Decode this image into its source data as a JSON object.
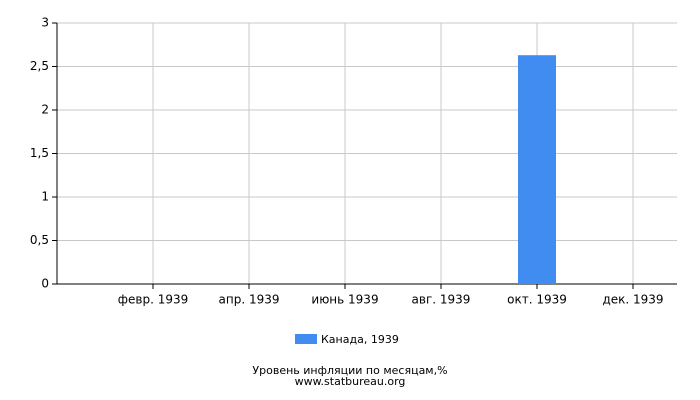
{
  "chart_data": {
    "type": "bar",
    "categories": [
      null,
      "февр. 1939",
      null,
      "апр. 1939",
      null,
      "июнь 1939",
      null,
      "авг. 1939",
      null,
      "окт. 1939",
      null,
      "дек. 1939"
    ],
    "series": [
      {
        "name": "Канада, 1939",
        "color": "#418cf0",
        "values": [
          null,
          null,
          null,
          null,
          null,
          null,
          null,
          null,
          null,
          2.63,
          null,
          null
        ]
      }
    ],
    "ylim": [
      0,
      3
    ],
    "yticks": [
      0,
      {
        "value": 0.5,
        "label": "0,5"
      },
      1,
      {
        "value": 1.5,
        "label": "1,5"
      },
      2,
      {
        "value": 2.5,
        "label": "2,5"
      },
      3
    ],
    "grid": true,
    "legend": "bottom",
    "xlabel": "Уровень инфляции по месяцам,%",
    "source": "www.statbureau.org"
  }
}
